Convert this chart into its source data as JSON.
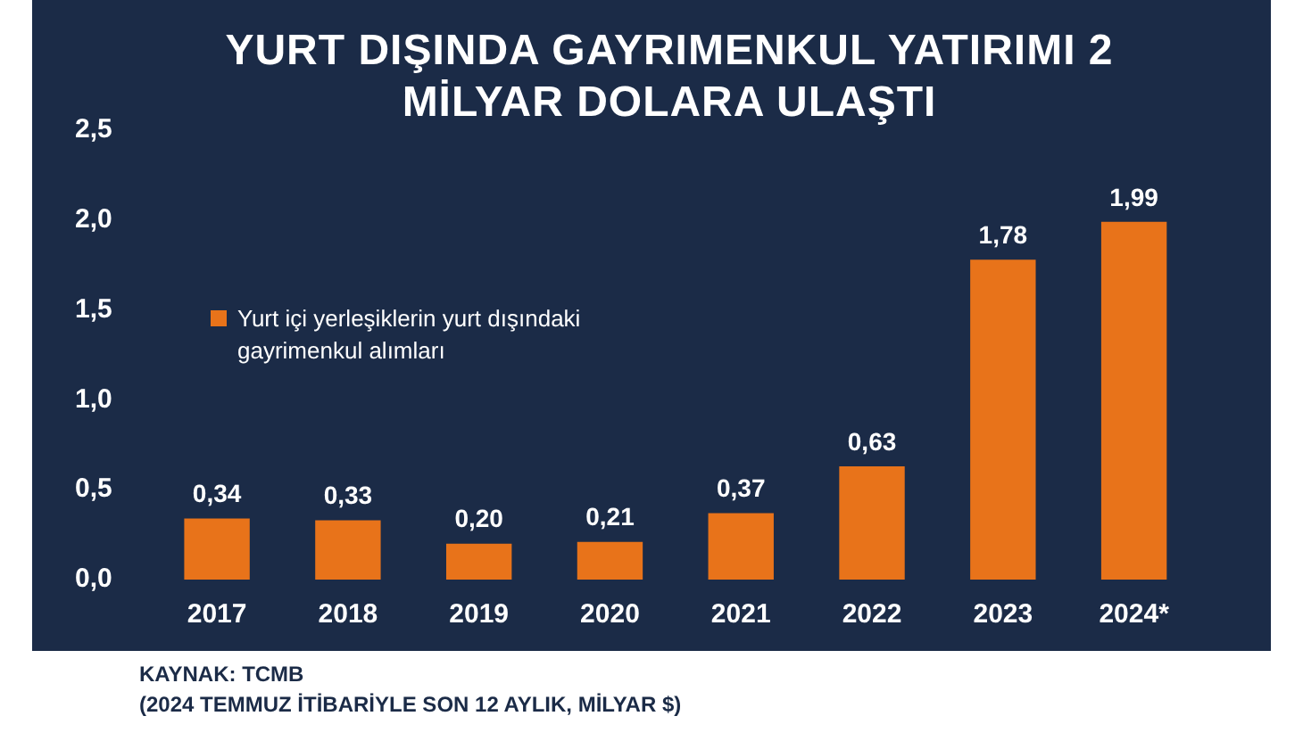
{
  "chart_data": {
    "type": "bar",
    "title": "YURT DIŞINDA GAYRIMENKUL YATIRIMI 2 MİLYAR DOLARA ULAŞTI",
    "categories": [
      "2017",
      "2018",
      "2019",
      "2020",
      "2021",
      "2022",
      "2023",
      "2024*"
    ],
    "series": [
      {
        "name": "Yurt içi yerleşiklerin yurt dışındaki gayrimenkul alımları",
        "color": "#e8731a",
        "values": [
          0.34,
          0.33,
          0.2,
          0.21,
          0.37,
          0.63,
          1.78,
          1.99
        ],
        "value_labels": [
          "0,34",
          "0,33",
          "0,20",
          "0,21",
          "0,37",
          "0,63",
          "1,78",
          "1,99"
        ]
      }
    ],
    "ylim": [
      0,
      2.5
    ],
    "yticks": [
      {
        "value": 0,
        "label": "0,0"
      },
      {
        "value": 0.5,
        "label": "0,5"
      },
      {
        "value": 1,
        "label": "1,0"
      },
      {
        "value": 1.5,
        "label": "1,5"
      },
      {
        "value": 2,
        "label": "2,0"
      },
      {
        "value": 2.5,
        "label": "2,5"
      }
    ],
    "grid": false,
    "legend": "left",
    "annotations": [
      "KAYNAK: TCMB",
      "(2024 TEMMUZ İTİBARİYLE SON 12 AYLIK, MİLYAR $)"
    ]
  }
}
